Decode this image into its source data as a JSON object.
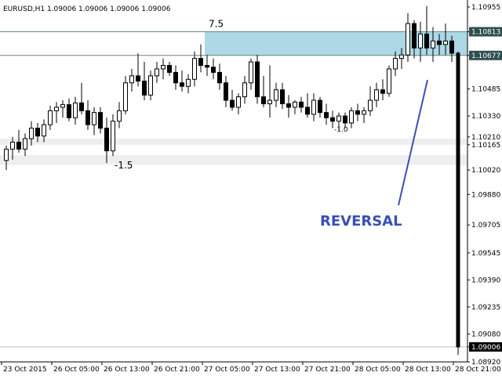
{
  "chart_data": {
    "type": "candlestick",
    "header": "EURUSD,H1  1.09006 1.09006 1.09006 1.09006",
    "ylim": [
      1.0892,
      1.10995
    ],
    "y_ticks": [
      "1.10955",
      "1.10813",
      "1.10677",
      "1.10485",
      "1.10330",
      "1.10210",
      "1.10165",
      "1.10020",
      "1.09880",
      "1.09705",
      "1.09545",
      "1.09390",
      "1.09235",
      "1.09080",
      "1.09006",
      "1.08920"
    ],
    "y_tick_values": [
      1.10955,
      1.10813,
      1.10677,
      1.10485,
      1.1033,
      1.1021,
      1.10165,
      1.1002,
      1.0988,
      1.09705,
      1.09545,
      1.0939,
      1.09235,
      1.0908,
      1.09006,
      1.0892
    ],
    "x_ticks": [
      "23 Oct 2015",
      "26 Oct 05:00",
      "26 Oct 13:00",
      "26 Oct 21:00",
      "27 Oct 05:00",
      "27 Oct 13:00",
      "27 Oct 21:00",
      "28 Oct 05:00",
      "28 Oct 13:00",
      "28 Oct 21:00"
    ],
    "x_tick_bars": [
      0,
      8,
      16,
      24,
      32,
      40,
      48,
      56,
      64,
      72
    ],
    "zone": {
      "low": 1.10677,
      "high": 1.10813,
      "from_bar": 32,
      "to_bar": 74,
      "label": "7.5"
    },
    "price_labels": {
      "zone_high": "1.10813",
      "zone_low": "1.10677",
      "current": "1.09006"
    },
    "current_price": 1.09006,
    "annotations": {
      "low_label": "-1.5",
      "mid_label": "-1.0",
      "reversal": "REVERSAL"
    },
    "candles": [
      [
        1.10075,
        1.1016,
        1.1002,
        1.1014
      ],
      [
        1.1014,
        1.1021,
        1.1008,
        1.1018
      ],
      [
        1.1018,
        1.1025,
        1.1012,
        1.1014
      ],
      [
        1.1014,
        1.1023,
        1.101,
        1.102
      ],
      [
        1.102,
        1.103,
        1.1016,
        1.1026
      ],
      [
        1.1026,
        1.1029,
        1.1018,
        1.10215
      ],
      [
        1.10215,
        1.1031,
        1.1018,
        1.1028
      ],
      [
        1.1028,
        1.1039,
        1.1025,
        1.1036
      ],
      [
        1.1036,
        1.1041,
        1.1029,
        1.1038
      ],
      [
        1.1038,
        1.1042,
        1.1032,
        1.10395
      ],
      [
        1.10395,
        1.1043,
        1.103,
        1.1032
      ],
      [
        1.1032,
        1.1044,
        1.1028,
        1.10405
      ],
      [
        1.10405,
        1.1052,
        1.1034,
        1.1036
      ],
      [
        1.1036,
        1.1042,
        1.1025,
        1.1028
      ],
      [
        1.1028,
        1.1038,
        1.1022,
        1.1035
      ],
      [
        1.1035,
        1.1038,
        1.1023,
        1.1026
      ],
      [
        1.1026,
        1.1032,
        1.1006,
        1.1013
      ],
      [
        1.1013,
        1.1034,
        1.101,
        1.103
      ],
      [
        1.103,
        1.1041,
        1.1026,
        1.1036
      ],
      [
        1.1036,
        1.1056,
        1.1034,
        1.1052
      ],
      [
        1.1052,
        1.106,
        1.1047,
        1.1056
      ],
      [
        1.1056,
        1.1069,
        1.105,
        1.1053
      ],
      [
        1.1053,
        1.1064,
        1.1042,
        1.1045
      ],
      [
        1.1045,
        1.1059,
        1.1042,
        1.1056
      ],
      [
        1.1056,
        1.1064,
        1.1052,
        1.106
      ],
      [
        1.106,
        1.1066,
        1.1054,
        1.1062
      ],
      [
        1.1062,
        1.1064,
        1.1056,
        1.1058
      ],
      [
        1.1058,
        1.1062,
        1.1048,
        1.1052
      ],
      [
        1.1052,
        1.1059,
        1.1047,
        1.105
      ],
      [
        1.105,
        1.1057,
        1.1046,
        1.1054
      ],
      [
        1.1054,
        1.107,
        1.105,
        1.1066
      ],
      [
        1.1066,
        1.1074,
        1.1058,
        1.1062
      ],
      [
        1.1062,
        1.1068,
        1.1056,
        1.1061
      ],
      [
        1.1061,
        1.1066,
        1.1054,
        1.1058
      ],
      [
        1.1058,
        1.1063,
        1.1048,
        1.1052
      ],
      [
        1.1052,
        1.1056,
        1.1038,
        1.1042
      ],
      [
        1.1042,
        1.1048,
        1.1036,
        1.1038
      ],
      [
        1.1038,
        1.1046,
        1.1034,
        1.1044
      ],
      [
        1.1044,
        1.1056,
        1.104,
        1.1052
      ],
      [
        1.1052,
        1.1066,
        1.1048,
        1.1064
      ],
      [
        1.1064,
        1.1068,
        1.104,
        1.1044
      ],
      [
        1.1044,
        1.1056,
        1.1038,
        1.104
      ],
      [
        1.104,
        1.1062,
        1.1032,
        1.1042
      ],
      [
        1.1042,
        1.1052,
        1.1038,
        1.1048
      ],
      [
        1.1048,
        1.1052,
        1.1037,
        1.104
      ],
      [
        1.104,
        1.1045,
        1.1032,
        1.1038
      ],
      [
        1.1038,
        1.1042,
        1.1034,
        1.1041
      ],
      [
        1.1041,
        1.1044,
        1.1035,
        1.1038
      ],
      [
        1.1038,
        1.1046,
        1.1032,
        1.1034
      ],
      [
        1.1034,
        1.1046,
        1.103,
        1.1042
      ],
      [
        1.1042,
        1.1044,
        1.1032,
        1.1035
      ],
      [
        1.1035,
        1.104,
        1.1028,
        1.1032
      ],
      [
        1.1032,
        1.1036,
        1.1026,
        1.103
      ],
      [
        1.103,
        1.1035,
        1.1025,
        1.1033
      ],
      [
        1.1033,
        1.1035,
        1.1026,
        1.1029
      ],
      [
        1.1029,
        1.1038,
        1.1026,
        1.1036
      ],
      [
        1.1036,
        1.104,
        1.103,
        1.1034
      ],
      [
        1.1034,
        1.1038,
        1.1029,
        1.1036
      ],
      [
        1.1036,
        1.105,
        1.1033,
        1.1042
      ],
      [
        1.1042,
        1.1052,
        1.1038,
        1.1048
      ],
      [
        1.1048,
        1.1054,
        1.1042,
        1.1046
      ],
      [
        1.1046,
        1.1062,
        1.1044,
        1.106
      ],
      [
        1.106,
        1.107,
        1.1056,
        1.1066
      ],
      [
        1.1066,
        1.1072,
        1.106,
        1.1068
      ],
      [
        1.1068,
        1.1092,
        1.1064,
        1.1086
      ],
      [
        1.1086,
        1.1088,
        1.1066,
        1.1072
      ],
      [
        1.1072,
        1.1087,
        1.1064,
        1.108
      ],
      [
        1.108,
        1.1096,
        1.1068,
        1.1072
      ],
      [
        1.1072,
        1.1084,
        1.1064,
        1.1076
      ],
      [
        1.1076,
        1.108,
        1.1068,
        1.1074
      ],
      [
        1.1074,
        1.1086,
        1.1068,
        1.1076
      ],
      [
        1.1076,
        1.1079,
        1.1064,
        1.1069
      ],
      [
        1.1069,
        1.107,
        1.0896,
        1.09006
      ]
    ]
  }
}
